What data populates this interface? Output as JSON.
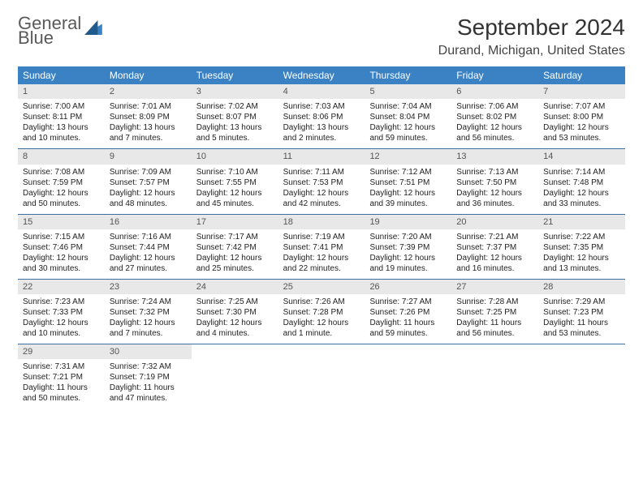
{
  "logo": {
    "line1": "General",
    "line2": "Blue"
  },
  "title": "September 2024",
  "location": "Durand, Michigan, United States",
  "colors": {
    "header_bg": "#3b82c4",
    "header_fg": "#ffffff",
    "daynum_bg": "#e8e8e8",
    "row_divider": "#3b6fa0",
    "logo_gray": "#5a5a5a",
    "logo_blue": "#3b82c4"
  },
  "day_names": [
    "Sunday",
    "Monday",
    "Tuesday",
    "Wednesday",
    "Thursday",
    "Friday",
    "Saturday"
  ],
  "weeks": [
    [
      {
        "n": "1",
        "sr": "Sunrise: 7:00 AM",
        "ss": "Sunset: 8:11 PM",
        "d1": "Daylight: 13 hours",
        "d2": "and 10 minutes."
      },
      {
        "n": "2",
        "sr": "Sunrise: 7:01 AM",
        "ss": "Sunset: 8:09 PM",
        "d1": "Daylight: 13 hours",
        "d2": "and 7 minutes."
      },
      {
        "n": "3",
        "sr": "Sunrise: 7:02 AM",
        "ss": "Sunset: 8:07 PM",
        "d1": "Daylight: 13 hours",
        "d2": "and 5 minutes."
      },
      {
        "n": "4",
        "sr": "Sunrise: 7:03 AM",
        "ss": "Sunset: 8:06 PM",
        "d1": "Daylight: 13 hours",
        "d2": "and 2 minutes."
      },
      {
        "n": "5",
        "sr": "Sunrise: 7:04 AM",
        "ss": "Sunset: 8:04 PM",
        "d1": "Daylight: 12 hours",
        "d2": "and 59 minutes."
      },
      {
        "n": "6",
        "sr": "Sunrise: 7:06 AM",
        "ss": "Sunset: 8:02 PM",
        "d1": "Daylight: 12 hours",
        "d2": "and 56 minutes."
      },
      {
        "n": "7",
        "sr": "Sunrise: 7:07 AM",
        "ss": "Sunset: 8:00 PM",
        "d1": "Daylight: 12 hours",
        "d2": "and 53 minutes."
      }
    ],
    [
      {
        "n": "8",
        "sr": "Sunrise: 7:08 AM",
        "ss": "Sunset: 7:59 PM",
        "d1": "Daylight: 12 hours",
        "d2": "and 50 minutes."
      },
      {
        "n": "9",
        "sr": "Sunrise: 7:09 AM",
        "ss": "Sunset: 7:57 PM",
        "d1": "Daylight: 12 hours",
        "d2": "and 48 minutes."
      },
      {
        "n": "10",
        "sr": "Sunrise: 7:10 AM",
        "ss": "Sunset: 7:55 PM",
        "d1": "Daylight: 12 hours",
        "d2": "and 45 minutes."
      },
      {
        "n": "11",
        "sr": "Sunrise: 7:11 AM",
        "ss": "Sunset: 7:53 PM",
        "d1": "Daylight: 12 hours",
        "d2": "and 42 minutes."
      },
      {
        "n": "12",
        "sr": "Sunrise: 7:12 AM",
        "ss": "Sunset: 7:51 PM",
        "d1": "Daylight: 12 hours",
        "d2": "and 39 minutes."
      },
      {
        "n": "13",
        "sr": "Sunrise: 7:13 AM",
        "ss": "Sunset: 7:50 PM",
        "d1": "Daylight: 12 hours",
        "d2": "and 36 minutes."
      },
      {
        "n": "14",
        "sr": "Sunrise: 7:14 AM",
        "ss": "Sunset: 7:48 PM",
        "d1": "Daylight: 12 hours",
        "d2": "and 33 minutes."
      }
    ],
    [
      {
        "n": "15",
        "sr": "Sunrise: 7:15 AM",
        "ss": "Sunset: 7:46 PM",
        "d1": "Daylight: 12 hours",
        "d2": "and 30 minutes."
      },
      {
        "n": "16",
        "sr": "Sunrise: 7:16 AM",
        "ss": "Sunset: 7:44 PM",
        "d1": "Daylight: 12 hours",
        "d2": "and 27 minutes."
      },
      {
        "n": "17",
        "sr": "Sunrise: 7:17 AM",
        "ss": "Sunset: 7:42 PM",
        "d1": "Daylight: 12 hours",
        "d2": "and 25 minutes."
      },
      {
        "n": "18",
        "sr": "Sunrise: 7:19 AM",
        "ss": "Sunset: 7:41 PM",
        "d1": "Daylight: 12 hours",
        "d2": "and 22 minutes."
      },
      {
        "n": "19",
        "sr": "Sunrise: 7:20 AM",
        "ss": "Sunset: 7:39 PM",
        "d1": "Daylight: 12 hours",
        "d2": "and 19 minutes."
      },
      {
        "n": "20",
        "sr": "Sunrise: 7:21 AM",
        "ss": "Sunset: 7:37 PM",
        "d1": "Daylight: 12 hours",
        "d2": "and 16 minutes."
      },
      {
        "n": "21",
        "sr": "Sunrise: 7:22 AM",
        "ss": "Sunset: 7:35 PM",
        "d1": "Daylight: 12 hours",
        "d2": "and 13 minutes."
      }
    ],
    [
      {
        "n": "22",
        "sr": "Sunrise: 7:23 AM",
        "ss": "Sunset: 7:33 PM",
        "d1": "Daylight: 12 hours",
        "d2": "and 10 minutes."
      },
      {
        "n": "23",
        "sr": "Sunrise: 7:24 AM",
        "ss": "Sunset: 7:32 PM",
        "d1": "Daylight: 12 hours",
        "d2": "and 7 minutes."
      },
      {
        "n": "24",
        "sr": "Sunrise: 7:25 AM",
        "ss": "Sunset: 7:30 PM",
        "d1": "Daylight: 12 hours",
        "d2": "and 4 minutes."
      },
      {
        "n": "25",
        "sr": "Sunrise: 7:26 AM",
        "ss": "Sunset: 7:28 PM",
        "d1": "Daylight: 12 hours",
        "d2": "and 1 minute."
      },
      {
        "n": "26",
        "sr": "Sunrise: 7:27 AM",
        "ss": "Sunset: 7:26 PM",
        "d1": "Daylight: 11 hours",
        "d2": "and 59 minutes."
      },
      {
        "n": "27",
        "sr": "Sunrise: 7:28 AM",
        "ss": "Sunset: 7:25 PM",
        "d1": "Daylight: 11 hours",
        "d2": "and 56 minutes."
      },
      {
        "n": "28",
        "sr": "Sunrise: 7:29 AM",
        "ss": "Sunset: 7:23 PM",
        "d1": "Daylight: 11 hours",
        "d2": "and 53 minutes."
      }
    ],
    [
      {
        "n": "29",
        "sr": "Sunrise: 7:31 AM",
        "ss": "Sunset: 7:21 PM",
        "d1": "Daylight: 11 hours",
        "d2": "and 50 minutes."
      },
      {
        "n": "30",
        "sr": "Sunrise: 7:32 AM",
        "ss": "Sunset: 7:19 PM",
        "d1": "Daylight: 11 hours",
        "d2": "and 47 minutes."
      },
      null,
      null,
      null,
      null,
      null
    ]
  ]
}
